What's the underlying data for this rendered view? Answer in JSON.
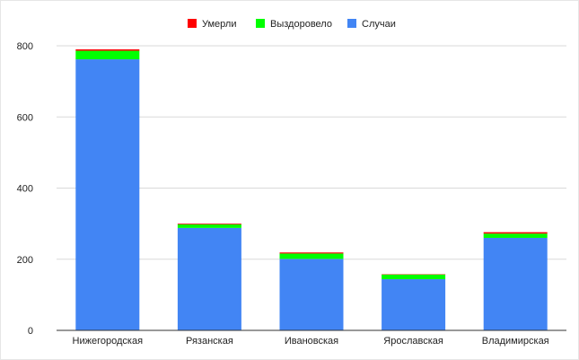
{
  "chart_data": {
    "type": "bar",
    "stacked": true,
    "categories": [
      "Нижегородская",
      "Рязанская",
      "Ивановская",
      "Ярославская",
      "Владимирская"
    ],
    "series": [
      {
        "name": "Случаи",
        "color": "#4285f4",
        "values": [
          762,
          288,
          201,
          144,
          260
        ]
      },
      {
        "name": "Выздоровело",
        "color": "#00ff00",
        "values": [
          24,
          10,
          15,
          13,
          12
        ]
      },
      {
        "name": "Умерли",
        "color": "#ff0000",
        "values": [
          4,
          2,
          3,
          1,
          4
        ]
      }
    ],
    "legend_order": [
      "Умерли",
      "Выздоровело",
      "Случаи"
    ],
    "legend_position": "top",
    "ylim": [
      0,
      800
    ],
    "yticks": [
      0,
      200,
      400,
      600,
      800
    ],
    "grid": true,
    "title": "",
    "xlabel": "",
    "ylabel": ""
  }
}
